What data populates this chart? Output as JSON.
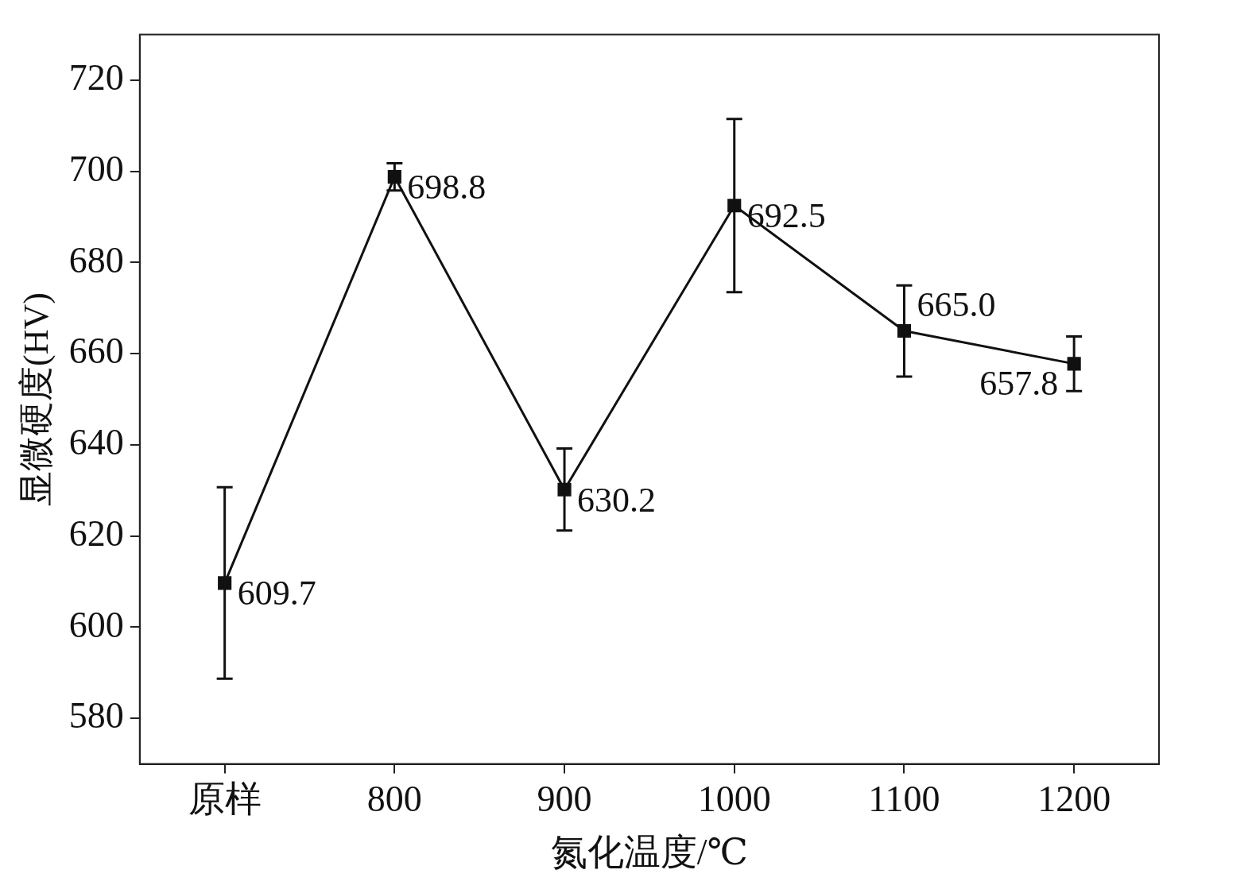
{
  "chart_data": {
    "type": "line",
    "xlabel": "氮化温度/℃",
    "ylabel": "显微硬度(HV)",
    "categories": [
      "原样",
      "800",
      "900",
      "1000",
      "1100",
      "1200"
    ],
    "series": [
      {
        "color": "#111111",
        "values": [
          609.7,
          698.8,
          630.2,
          692.5,
          665.0,
          657.8
        ],
        "value_labels": [
          "609.7",
          "698.8",
          "630.2",
          "692.5",
          "665.0",
          "657.8"
        ],
        "errors": [
          21,
          3,
          9,
          19,
          10,
          6
        ]
      }
    ],
    "ylim": [
      570,
      730
    ],
    "yticks": [
      580,
      600,
      620,
      640,
      660,
      680,
      700,
      720
    ],
    "marker": "square",
    "line_style": "solid",
    "grid": false,
    "legend": false
  }
}
